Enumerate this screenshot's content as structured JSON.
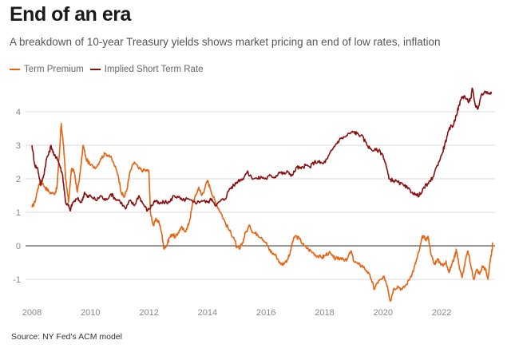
{
  "header": {
    "title": "End of an era",
    "subtitle": "A breakdown of 10-year Treasury yields shows market pricing an end of low rates, inflation"
  },
  "footer": {
    "source": "Source: NY Fed's ACM model"
  },
  "colors": {
    "term_premium": "#e8620f",
    "implied_short_rate": "#8b0f0f",
    "grid": "#d8d8d8",
    "zero_line": "#333333",
    "tick_text": "#888888"
  },
  "chart_data": {
    "type": "line",
    "title": "End of an era",
    "subtitle": "A breakdown of 10-year Treasury yields shows market pricing an end of low rates, inflation",
    "xlabel": "",
    "ylabel": "",
    "xlim": [
      2007.95,
      2023.75
    ],
    "ylim": [
      -1.75,
      4.7
    ],
    "x_ticks": [
      2008,
      2010,
      2012,
      2014,
      2016,
      2018,
      2020,
      2022
    ],
    "x_tick_labels": [
      "2008",
      "2010",
      "2012",
      "2014",
      "2016",
      "2018",
      "2020",
      "2022"
    ],
    "y_ticks": [
      -1,
      0,
      1,
      2,
      3,
      4
    ],
    "y_tick_labels": [
      "-1",
      "0",
      "1",
      "2",
      "3",
      "4"
    ],
    "grid": true,
    "zero_line": true,
    "legend_position": "top-left",
    "source": "Source: NY Fed's ACM model",
    "series": [
      {
        "name": "Term Premium",
        "color": "#e8620f",
        "points": [
          [
            2008.0,
            1.15
          ],
          [
            2008.1,
            1.3
          ],
          [
            2008.2,
            1.7
          ],
          [
            2008.3,
            1.95
          ],
          [
            2008.45,
            1.75
          ],
          [
            2008.6,
            1.6
          ],
          [
            2008.75,
            1.55
          ],
          [
            2008.85,
            1.7
          ],
          [
            2008.95,
            2.9
          ],
          [
            2009.0,
            3.65
          ],
          [
            2009.08,
            3.0
          ],
          [
            2009.15,
            2.0
          ],
          [
            2009.25,
            1.3
          ],
          [
            2009.35,
            2.3
          ],
          [
            2009.45,
            2.2
          ],
          [
            2009.55,
            1.6
          ],
          [
            2009.65,
            2.2
          ],
          [
            2009.75,
            3.0
          ],
          [
            2009.85,
            2.6
          ],
          [
            2010.0,
            2.4
          ],
          [
            2010.2,
            2.35
          ],
          [
            2010.35,
            2.6
          ],
          [
            2010.5,
            2.75
          ],
          [
            2010.65,
            2.7
          ],
          [
            2010.8,
            2.45
          ],
          [
            2010.95,
            2.1
          ],
          [
            2011.05,
            1.6
          ],
          [
            2011.15,
            1.45
          ],
          [
            2011.25,
            1.7
          ],
          [
            2011.35,
            2.2
          ],
          [
            2011.5,
            2.5
          ],
          [
            2011.65,
            2.3
          ],
          [
            2011.8,
            2.25
          ],
          [
            2011.95,
            2.25
          ],
          [
            2012.0,
            2.2
          ],
          [
            2012.05,
            1.0
          ],
          [
            2012.15,
            0.6
          ],
          [
            2012.25,
            0.8
          ],
          [
            2012.35,
            0.7
          ],
          [
            2012.45,
            0.3
          ],
          [
            2012.5,
            -0.05
          ],
          [
            2012.6,
            0.0
          ],
          [
            2012.7,
            0.25
          ],
          [
            2012.8,
            0.35
          ],
          [
            2012.9,
            0.25
          ],
          [
            2013.0,
            0.4
          ],
          [
            2013.1,
            0.55
          ],
          [
            2013.2,
            0.45
          ],
          [
            2013.3,
            0.5
          ],
          [
            2013.4,
            0.8
          ],
          [
            2013.5,
            1.3
          ],
          [
            2013.6,
            1.5
          ],
          [
            2013.7,
            1.75
          ],
          [
            2013.8,
            1.5
          ],
          [
            2013.9,
            1.7
          ],
          [
            2014.0,
            1.95
          ],
          [
            2014.1,
            1.7
          ],
          [
            2014.2,
            1.45
          ],
          [
            2014.3,
            1.25
          ],
          [
            2014.45,
            1.0
          ],
          [
            2014.6,
            0.7
          ],
          [
            2014.75,
            0.45
          ],
          [
            2014.9,
            0.25
          ],
          [
            2015.0,
            -0.05
          ],
          [
            2015.1,
            -0.1
          ],
          [
            2015.2,
            0.1
          ],
          [
            2015.3,
            0.4
          ],
          [
            2015.45,
            0.6
          ],
          [
            2015.55,
            0.4
          ],
          [
            2015.7,
            0.35
          ],
          [
            2015.85,
            0.25
          ],
          [
            2016.0,
            0.1
          ],
          [
            2016.1,
            -0.1
          ],
          [
            2016.2,
            -0.2
          ],
          [
            2016.35,
            -0.3
          ],
          [
            2016.5,
            -0.55
          ],
          [
            2016.65,
            -0.5
          ],
          [
            2016.8,
            -0.3
          ],
          [
            2016.9,
            0.1
          ],
          [
            2017.0,
            0.3
          ],
          [
            2017.15,
            0.2
          ],
          [
            2017.3,
            0.0
          ],
          [
            2017.45,
            -0.1
          ],
          [
            2017.6,
            -0.2
          ],
          [
            2017.75,
            -0.3
          ],
          [
            2017.9,
            -0.35
          ],
          [
            2018.0,
            -0.3
          ],
          [
            2018.15,
            -0.2
          ],
          [
            2018.3,
            -0.35
          ],
          [
            2018.45,
            -0.4
          ],
          [
            2018.6,
            -0.35
          ],
          [
            2018.75,
            -0.45
          ],
          [
            2018.9,
            -0.15
          ],
          [
            2019.0,
            -0.45
          ],
          [
            2019.15,
            -0.55
          ],
          [
            2019.3,
            -0.6
          ],
          [
            2019.45,
            -0.75
          ],
          [
            2019.6,
            -1.0
          ],
          [
            2019.7,
            -1.3
          ],
          [
            2019.8,
            -1.1
          ],
          [
            2019.95,
            -1.0
          ],
          [
            2020.05,
            -0.95
          ],
          [
            2020.15,
            -1.2
          ],
          [
            2020.25,
            -1.65
          ],
          [
            2020.35,
            -1.3
          ],
          [
            2020.5,
            -1.2
          ],
          [
            2020.65,
            -1.3
          ],
          [
            2020.8,
            -1.15
          ],
          [
            2020.95,
            -0.9
          ],
          [
            2021.05,
            -0.7
          ],
          [
            2021.15,
            -0.4
          ],
          [
            2021.25,
            -0.1
          ],
          [
            2021.35,
            0.3
          ],
          [
            2021.45,
            0.2
          ],
          [
            2021.55,
            0.25
          ],
          [
            2021.65,
            -0.3
          ],
          [
            2021.75,
            -0.55
          ],
          [
            2021.85,
            -0.4
          ],
          [
            2021.95,
            -0.5
          ],
          [
            2022.05,
            -0.6
          ],
          [
            2022.15,
            -0.45
          ],
          [
            2022.25,
            -0.8
          ],
          [
            2022.35,
            -0.55
          ],
          [
            2022.45,
            -0.3
          ],
          [
            2022.5,
            -0.1
          ],
          [
            2022.6,
            -0.6
          ],
          [
            2022.7,
            -0.95
          ],
          [
            2022.8,
            -0.5
          ],
          [
            2022.9,
            -0.15
          ],
          [
            2023.0,
            -0.6
          ],
          [
            2023.1,
            -1.0
          ],
          [
            2023.2,
            -0.7
          ],
          [
            2023.3,
            -0.85
          ],
          [
            2023.4,
            -0.6
          ],
          [
            2023.5,
            -0.7
          ],
          [
            2023.58,
            -1.0
          ],
          [
            2023.65,
            -0.5
          ],
          [
            2023.7,
            -0.3
          ],
          [
            2023.75,
            0.1
          ]
        ]
      },
      {
        "name": "Implied Short Term Rate",
        "color": "#8b0f0f",
        "points": [
          [
            2008.0,
            3.0
          ],
          [
            2008.1,
            2.4
          ],
          [
            2008.2,
            2.3
          ],
          [
            2008.3,
            1.8
          ],
          [
            2008.4,
            2.1
          ],
          [
            2008.5,
            2.6
          ],
          [
            2008.6,
            2.8
          ],
          [
            2008.65,
            3.0
          ],
          [
            2008.75,
            2.7
          ],
          [
            2008.85,
            2.65
          ],
          [
            2008.95,
            2.4
          ],
          [
            2009.05,
            2.1
          ],
          [
            2009.15,
            1.3
          ],
          [
            2009.25,
            1.2
          ],
          [
            2009.3,
            1.05
          ],
          [
            2009.4,
            1.3
          ],
          [
            2009.55,
            1.4
          ],
          [
            2009.7,
            1.3
          ],
          [
            2009.8,
            1.6
          ],
          [
            2009.9,
            1.45
          ],
          [
            2010.0,
            1.5
          ],
          [
            2010.2,
            1.35
          ],
          [
            2010.35,
            1.5
          ],
          [
            2010.5,
            1.35
          ],
          [
            2010.7,
            1.55
          ],
          [
            2010.85,
            1.4
          ],
          [
            2011.0,
            1.35
          ],
          [
            2011.2,
            1.1
          ],
          [
            2011.35,
            1.35
          ],
          [
            2011.5,
            1.2
          ],
          [
            2011.65,
            1.5
          ],
          [
            2011.8,
            1.25
          ],
          [
            2011.95,
            1.05
          ],
          [
            2012.1,
            1.2
          ],
          [
            2012.2,
            1.35
          ],
          [
            2012.35,
            1.25
          ],
          [
            2012.5,
            1.3
          ],
          [
            2012.7,
            1.3
          ],
          [
            2012.85,
            1.5
          ],
          [
            2013.0,
            1.45
          ],
          [
            2013.15,
            1.35
          ],
          [
            2013.3,
            1.4
          ],
          [
            2013.5,
            1.3
          ],
          [
            2013.65,
            1.3
          ],
          [
            2013.8,
            1.35
          ],
          [
            2014.0,
            1.3
          ],
          [
            2014.15,
            1.4
          ],
          [
            2014.3,
            1.2
          ],
          [
            2014.45,
            1.35
          ],
          [
            2014.6,
            1.4
          ],
          [
            2014.75,
            1.7
          ],
          [
            2014.9,
            1.8
          ],
          [
            2015.05,
            1.95
          ],
          [
            2015.2,
            2.0
          ],
          [
            2015.35,
            2.2
          ],
          [
            2015.5,
            2.05
          ],
          [
            2015.7,
            2.0
          ],
          [
            2015.85,
            2.05
          ],
          [
            2016.0,
            2.0
          ],
          [
            2016.15,
            2.1
          ],
          [
            2016.3,
            2.05
          ],
          [
            2016.45,
            2.2
          ],
          [
            2016.6,
            2.15
          ],
          [
            2016.75,
            2.2
          ],
          [
            2016.9,
            2.1
          ],
          [
            2017.05,
            2.35
          ],
          [
            2017.2,
            2.3
          ],
          [
            2017.35,
            2.4
          ],
          [
            2017.5,
            2.35
          ],
          [
            2017.65,
            2.5
          ],
          [
            2017.8,
            2.5
          ],
          [
            2017.95,
            2.45
          ],
          [
            2018.1,
            2.6
          ],
          [
            2018.25,
            2.85
          ],
          [
            2018.4,
            3.05
          ],
          [
            2018.55,
            3.2
          ],
          [
            2018.7,
            3.25
          ],
          [
            2018.85,
            3.35
          ],
          [
            2019.0,
            3.4
          ],
          [
            2019.1,
            3.35
          ],
          [
            2019.25,
            3.3
          ],
          [
            2019.4,
            3.1
          ],
          [
            2019.55,
            2.9
          ],
          [
            2019.7,
            2.85
          ],
          [
            2019.85,
            2.85
          ],
          [
            2020.0,
            2.7
          ],
          [
            2020.1,
            2.4
          ],
          [
            2020.2,
            2.0
          ],
          [
            2020.35,
            1.95
          ],
          [
            2020.5,
            1.9
          ],
          [
            2020.7,
            1.8
          ],
          [
            2020.85,
            1.7
          ],
          [
            2021.0,
            1.6
          ],
          [
            2021.15,
            1.5
          ],
          [
            2021.3,
            1.55
          ],
          [
            2021.4,
            1.75
          ],
          [
            2021.55,
            1.85
          ],
          [
            2021.7,
            2.05
          ],
          [
            2021.85,
            2.4
          ],
          [
            2022.0,
            2.7
          ],
          [
            2022.1,
            3.0
          ],
          [
            2022.2,
            3.3
          ],
          [
            2022.3,
            3.55
          ],
          [
            2022.4,
            3.6
          ],
          [
            2022.5,
            3.9
          ],
          [
            2022.6,
            4.2
          ],
          [
            2022.7,
            4.45
          ],
          [
            2022.8,
            4.45
          ],
          [
            2022.9,
            4.3
          ],
          [
            2023.0,
            4.4
          ],
          [
            2023.05,
            4.7
          ],
          [
            2023.15,
            4.2
          ],
          [
            2023.25,
            4.1
          ],
          [
            2023.35,
            4.5
          ],
          [
            2023.5,
            4.6
          ],
          [
            2023.6,
            4.55
          ],
          [
            2023.7,
            4.6
          ]
        ]
      }
    ]
  }
}
